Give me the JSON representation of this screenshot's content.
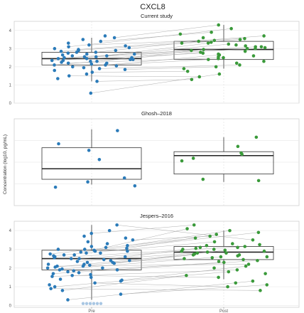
{
  "chart_data": {
    "type": "boxplot-dotplot",
    "title": "CXCL8",
    "ylabel": "Concentration (log10, pg/mL)",
    "xlabel": "",
    "categories": [
      "Pre",
      "Post"
    ],
    "colors": {
      "pre": "#2b7bb9",
      "post": "#3a9a3a",
      "below_limit": "#a9c7e3",
      "pair_line": "#9a9a9a"
    },
    "grid": true,
    "panels": [
      {
        "title": "Current study",
        "ylim": [
          0,
          4.5
        ],
        "yticks": [
          0,
          1,
          2,
          3,
          4
        ],
        "boxes": [
          {
            "group": "Pre",
            "whisker_low": 1.2,
            "q1": 2.1,
            "median": 2.45,
            "q3": 2.8,
            "whisker_high": 3.6
          },
          {
            "group": "Post",
            "whisker_low": 1.9,
            "q1": 2.4,
            "median": 2.95,
            "q3": 3.4,
            "whisker_high": 4.3
          }
        ],
        "pre": [
          0.55,
          1.2,
          1.35,
          1.5,
          1.6,
          1.7,
          1.8,
          1.85,
          1.9,
          1.95,
          2.0,
          2.05,
          2.1,
          2.1,
          2.15,
          2.2,
          2.2,
          2.25,
          2.3,
          2.3,
          2.35,
          2.35,
          2.4,
          2.4,
          2.45,
          2.45,
          2.5,
          2.5,
          2.55,
          2.55,
          2.6,
          2.6,
          2.65,
          2.7,
          2.7,
          2.75,
          2.8,
          2.8,
          2.85,
          2.9,
          2.9,
          2.95,
          3.0,
          3.05,
          3.1,
          3.15,
          3.2,
          3.3,
          3.4,
          3.5,
          3.6,
          3.7
        ],
        "post": [
          1.3,
          1.45,
          1.6,
          1.75,
          1.9,
          2.0,
          2.1,
          2.2,
          2.3,
          2.4,
          2.45,
          2.5,
          2.55,
          2.6,
          2.65,
          2.7,
          2.75,
          2.8,
          2.85,
          2.9,
          2.95,
          3.0,
          3.0,
          3.05,
          3.1,
          3.1,
          3.15,
          3.2,
          3.25,
          3.3,
          3.3,
          3.35,
          3.4,
          3.45,
          3.5,
          3.55,
          3.6,
          3.7,
          3.8,
          3.9,
          4.1,
          4.3
        ],
        "pairs": [
          [
            0,
            2
          ],
          [
            1,
            0
          ],
          [
            3,
            1
          ],
          [
            5,
            3
          ],
          [
            8,
            6
          ],
          [
            10,
            9
          ],
          [
            12,
            14
          ],
          [
            15,
            11
          ],
          [
            18,
            20
          ],
          [
            21,
            16
          ],
          [
            24,
            22
          ],
          [
            27,
            25
          ],
          [
            30,
            28
          ],
          [
            33,
            19
          ],
          [
            36,
            32
          ],
          [
            38,
            34
          ],
          [
            41,
            37
          ],
          [
            44,
            40
          ],
          [
            46,
            35
          ],
          [
            48,
            39
          ],
          [
            50,
            41
          ],
          [
            29,
            30
          ],
          [
            13,
            17
          ],
          [
            7,
            5
          ]
        ]
      },
      {
        "title": "Ghosh–2018",
        "ylim": [
          0.8,
          4.1
        ],
        "yticks": [],
        "boxes": [
          {
            "group": "Pre",
            "whisker_low": 1.6,
            "q1": 1.8,
            "median": 2.2,
            "q3": 3.0,
            "whisker_high": 3.7
          },
          {
            "group": "Post",
            "whisker_low": 1.7,
            "q1": 2.0,
            "median": 2.7,
            "q3": 2.85,
            "whisker_high": 3.4
          }
        ],
        "pre": [
          1.5,
          1.55,
          1.7,
          1.85,
          2.55,
          2.9,
          3.15,
          3.65
        ],
        "post": [
          1.75,
          1.8,
          2.5,
          2.6,
          2.75,
          2.8,
          3.05,
          3.4
        ],
        "pairs": []
      },
      {
        "title": "Jespers–2016",
        "ylim": [
          -0.1,
          4.5
        ],
        "yticks": [
          0,
          1,
          2,
          3,
          4
        ],
        "boxes": [
          {
            "group": "Pre",
            "whisker_low": 0.3,
            "q1": 1.9,
            "median": 2.5,
            "q3": 2.95,
            "whisker_high": 4.3
          },
          {
            "group": "Post",
            "whisker_low": 1.4,
            "q1": 2.45,
            "median": 2.85,
            "q3": 3.15,
            "whisker_high": 4.0
          }
        ],
        "pre": [
          0.3,
          0.6,
          0.8,
          0.9,
          1.0,
          1.1,
          1.2,
          1.3,
          1.35,
          1.4,
          1.5,
          1.55,
          1.6,
          1.65,
          1.7,
          1.75,
          1.8,
          1.85,
          1.9,
          1.9,
          1.95,
          2.0,
          2.0,
          2.05,
          2.1,
          2.1,
          2.15,
          2.2,
          2.2,
          2.25,
          2.3,
          2.3,
          2.35,
          2.4,
          2.4,
          2.45,
          2.5,
          2.5,
          2.55,
          2.6,
          2.6,
          2.65,
          2.7,
          2.7,
          2.75,
          2.8,
          2.8,
          2.85,
          2.9,
          2.9,
          2.95,
          3.0,
          3.0,
          3.05,
          3.1,
          3.15,
          3.2,
          3.3,
          3.4,
          3.5,
          3.6,
          3.7,
          3.85,
          4.0,
          4.3
        ],
        "pre_below_limit": 6,
        "below_limit_value": 0.1,
        "post": [
          0.8,
          1.0,
          1.1,
          1.2,
          1.3,
          1.5,
          1.6,
          1.7,
          1.8,
          1.9,
          2.0,
          2.1,
          2.2,
          2.3,
          2.35,
          2.4,
          2.45,
          2.5,
          2.55,
          2.6,
          2.6,
          2.65,
          2.7,
          2.7,
          2.75,
          2.8,
          2.8,
          2.85,
          2.9,
          2.9,
          2.95,
          3.0,
          3.0,
          3.05,
          3.1,
          3.1,
          3.15,
          3.2,
          3.25,
          3.3,
          3.4,
          3.5,
          3.6,
          3.7,
          3.8,
          3.9,
          4.0,
          4.1,
          4.3
        ],
        "pairs": [
          [
            0,
            4
          ],
          [
            1,
            2
          ],
          [
            2,
            6
          ],
          [
            4,
            8
          ],
          [
            6,
            1
          ],
          [
            8,
            11
          ],
          [
            11,
            9
          ],
          [
            14,
            15
          ],
          [
            17,
            13
          ],
          [
            20,
            19
          ],
          [
            23,
            24
          ],
          [
            26,
            22
          ],
          [
            29,
            30
          ],
          [
            32,
            27
          ],
          [
            35,
            33
          ],
          [
            38,
            36
          ],
          [
            41,
            40
          ],
          [
            44,
            42
          ],
          [
            47,
            45
          ],
          [
            50,
            47
          ],
          [
            53,
            44
          ],
          [
            56,
            46
          ],
          [
            59,
            43
          ],
          [
            62,
            48
          ],
          [
            64,
            41
          ],
          [
            31,
            17
          ],
          [
            37,
            28
          ],
          [
            25,
            12
          ],
          [
            12,
            5
          ],
          [
            3,
            0
          ]
        ]
      }
    ]
  }
}
